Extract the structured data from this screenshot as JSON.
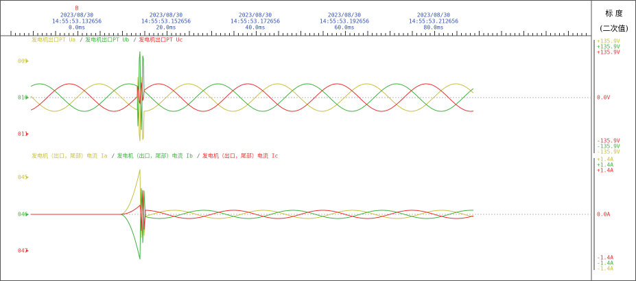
{
  "header": {
    "marker": "B",
    "times": [
      {
        "date": "2023/08/30",
        "time": "14:55:53.132656",
        "offset": "0.0ms"
      },
      {
        "date": "2023/08/30",
        "time": "14:55:53.152656",
        "offset": "20.0ms"
      },
      {
        "date": "2023/08/30",
        "time": "14:55:53.172656",
        "offset": "40.0ms"
      },
      {
        "date": "2023/08/30",
        "time": "14:55:53.192656",
        "offset": "60.0ms"
      },
      {
        "date": "2023/08/30",
        "time": "14:55:53.212656",
        "offset": "80.0ms"
      }
    ]
  },
  "scale_panel": {
    "title": "标 度",
    "subtitle": "(二次值)"
  },
  "panels": [
    {
      "legend": [
        {
          "name": "发电机出口PT Ua",
          "color": "#c8c040"
        },
        {
          "name": "发电机出口PT Ub",
          "color": "#40b040"
        },
        {
          "name": "发电机出口PT Uc",
          "color": "#e83030"
        }
      ],
      "channels": [
        "009",
        "010",
        "011"
      ],
      "top_labels": [
        "+135.9V",
        "+135.9V",
        "+135.9V"
      ],
      "zero_label": "0.0V",
      "bottom_labels": [
        "-135.9V",
        "-135.9V",
        "-135.9V"
      ]
    },
    {
      "legend": [
        {
          "name": "发电机（出口，尾部）电流 Ia",
          "color": "#c8c040"
        },
        {
          "name": "发电机（出口，尾部）电流 Ib",
          "color": "#40b040"
        },
        {
          "name": "发电机（出口，尾部）电流 Ic",
          "color": "#e83030"
        }
      ],
      "channels": [
        "045",
        "046",
        "047"
      ],
      "top_labels": [
        "+1.4A",
        "+1.4A",
        "+1.4A"
      ],
      "zero_label": "0.0A",
      "bottom_labels": [
        "-1.4A",
        "-1.4A",
        "-1.4A"
      ]
    }
  ]
}
